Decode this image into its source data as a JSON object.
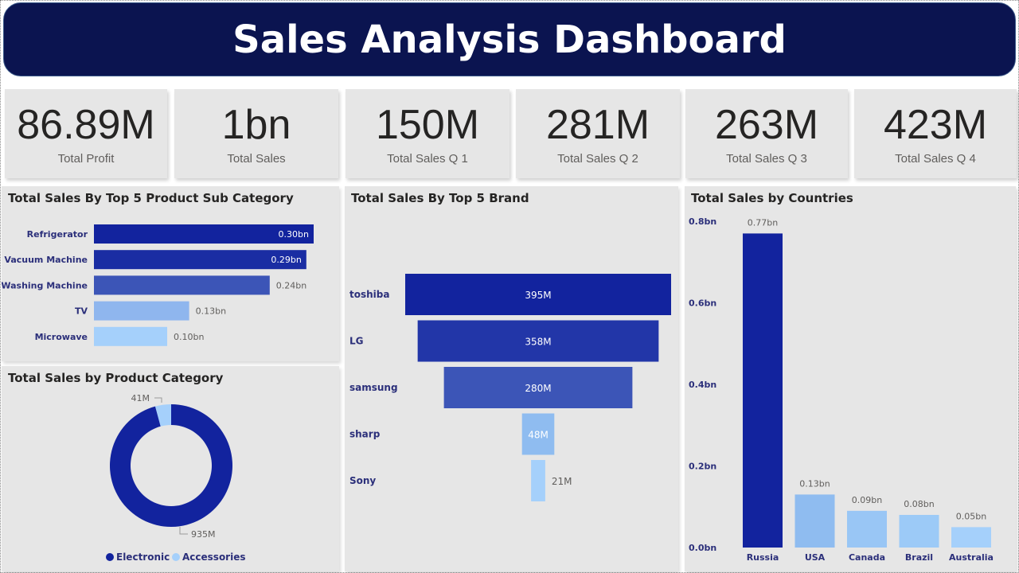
{
  "header": {
    "title": "Sales Analysis Dashboard"
  },
  "kpis": [
    {
      "value": "86.89M",
      "label": "Total Profit"
    },
    {
      "value": "1bn",
      "label": "Total Sales"
    },
    {
      "value": "150M",
      "label": "Total Sales Q 1"
    },
    {
      "value": "281M",
      "label": "Total Sales Q 2"
    },
    {
      "value": "263M",
      "label": "Total Sales Q 3"
    },
    {
      "value": "423M",
      "label": "Total Sales Q 4"
    }
  ],
  "colors": {
    "header_bg": "#0b1450",
    "panel_bg": "#e6e6e6",
    "dark_blue": "#12239e",
    "mid_blue": "#1f33a6",
    "blue": "#3c55b7",
    "light_blue": "#8fbcf0",
    "pale_blue": "#a5d0fb",
    "axis_label": "#2b2f7a",
    "data_label": "#605e5c"
  },
  "chart_data": [
    {
      "id": "subcategory",
      "type": "bar",
      "orientation": "horizontal",
      "title": "Total Sales By Top 5 Product Sub Category",
      "categories": [
        "Refrigerator",
        "Vacuum Machine",
        "Washing Machine",
        "TV",
        "Microwave"
      ],
      "values": [
        0.3,
        0.29,
        0.24,
        0.13,
        0.1
      ],
      "labels": [
        "0.30bn",
        "0.29bn",
        "0.24bn",
        "0.13bn",
        "0.10bn"
      ],
      "unit": "bn",
      "bar_colors": [
        "#12239e",
        "#1a2da3",
        "#3c55b7",
        "#8fb6ee",
        "#a5d0fb"
      ]
    },
    {
      "id": "category",
      "type": "pie",
      "donut": true,
      "title": "Total Sales by Product Category",
      "categories": [
        "Electronic",
        "Accessories"
      ],
      "values": [
        935,
        41
      ],
      "labels": [
        "935M",
        "41M"
      ],
      "unit": "M",
      "slice_colors": [
        "#12239e",
        "#a5d0fb"
      ],
      "legend": "bottom"
    },
    {
      "id": "brand",
      "type": "bar",
      "variant": "funnel",
      "title": "Total Sales By Top 5 Brand",
      "categories": [
        "toshiba",
        "LG",
        "samsung",
        "sharp",
        "Sony"
      ],
      "values": [
        395,
        358,
        280,
        48,
        21
      ],
      "labels": [
        "395M",
        "358M",
        "280M",
        "48M",
        "21M"
      ],
      "unit": "M",
      "bar_colors": [
        "#12239e",
        "#2236a8",
        "#3c55b7",
        "#8fbcf0",
        "#a5d0fb"
      ]
    },
    {
      "id": "countries",
      "type": "bar",
      "orientation": "vertical",
      "title": "Total Sales by Countries",
      "categories": [
        "Russia",
        "USA",
        "Canada",
        "Brazil",
        "Australia"
      ],
      "values": [
        0.77,
        0.13,
        0.09,
        0.08,
        0.05
      ],
      "labels": [
        "0.77bn",
        "0.13bn",
        "0.09bn",
        "0.08bn",
        "0.05bn"
      ],
      "y_ticks": [
        "0.0bn",
        "0.2bn",
        "0.4bn",
        "0.6bn",
        "0.8bn"
      ],
      "ylim": [
        0,
        0.8
      ],
      "unit": "bn",
      "grid": false,
      "bar_colors": [
        "#12239e",
        "#8fbcf0",
        "#99c6f5",
        "#9ccaf7",
        "#a5d0fb"
      ]
    }
  ]
}
